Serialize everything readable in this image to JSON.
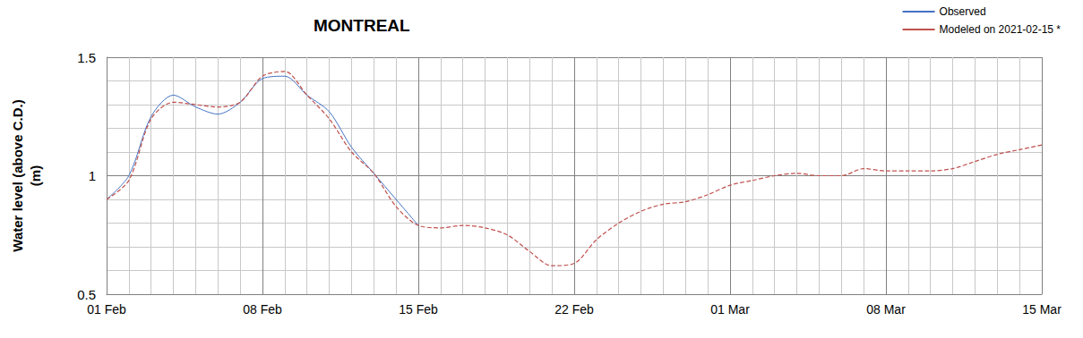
{
  "chart_data": {
    "type": "line",
    "title": "MONTREAL",
    "y_label": "Water level (above C.D.)\n(m)",
    "categories": [
      "01 Feb",
      null,
      null,
      null,
      null,
      null,
      null,
      "08 Feb",
      null,
      null,
      null,
      null,
      null,
      null,
      "15 Feb",
      null,
      null,
      null,
      null,
      null,
      null,
      "22 Feb",
      null,
      null,
      null,
      null,
      null,
      null,
      "01 Mar",
      null,
      null,
      null,
      null,
      null,
      null,
      "08 Mar",
      null,
      null,
      null,
      null,
      null,
      null,
      "15 Mar"
    ],
    "series": [
      {
        "name": "Observed",
        "color": "#4472c4",
        "line_style": "solid",
        "values": [
          0.9,
          1.0,
          1.25,
          1.34,
          1.29,
          1.26,
          1.31,
          1.41,
          1.42,
          1.34,
          1.27,
          1.12,
          1.01,
          0.9,
          0.79,
          null,
          null,
          null,
          null,
          null,
          null,
          null,
          null,
          null,
          null,
          null,
          null,
          null,
          null,
          null,
          null,
          null,
          null,
          null,
          null,
          null,
          null,
          null,
          null,
          null,
          null,
          null,
          null
        ]
      },
      {
        "name": "Modeled on 2021-02-15 *",
        "color": "#c0504d",
        "line_style": "dashed",
        "values": [
          0.9,
          0.98,
          1.24,
          1.31,
          1.3,
          1.29,
          1.31,
          1.42,
          1.44,
          1.34,
          1.24,
          1.1,
          1.01,
          0.87,
          0.79,
          0.78,
          0.79,
          0.78,
          0.75,
          0.68,
          0.62,
          0.63,
          0.73,
          0.8,
          0.85,
          0.88,
          0.89,
          0.92,
          0.96,
          0.98,
          1.0,
          1.01,
          1.0,
          1.0,
          1.03,
          1.02,
          1.02,
          1.02,
          1.03,
          1.06,
          1.09,
          1.11,
          1.13
        ]
      }
    ],
    "ylim": [
      0.5,
      1.5
    ],
    "yticks": [
      0.5,
      1,
      1.5
    ],
    "grid": true,
    "legend": "top-right"
  }
}
